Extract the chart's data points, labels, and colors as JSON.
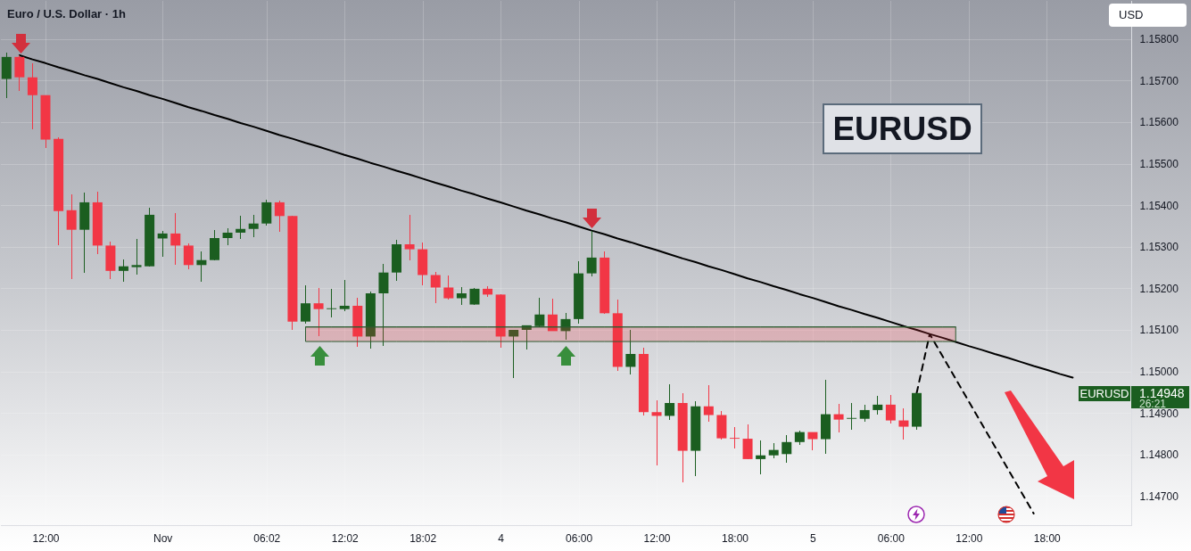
{
  "chart_data": {
    "type": "candlestick",
    "title": "Euro / U.S. Dollar · 1h",
    "ylabel": "USD",
    "annotations": [
      "EURUSD",
      "EURUSD",
      "1.14948",
      "26:21"
    ],
    "categories": [
      null,
      null,
      null,
      "12:00",
      null,
      null,
      null,
      null,
      null,
      null,
      null,
      null,
      "Nov",
      null,
      null,
      null,
      null,
      null,
      null,
      null,
      "06:02",
      null,
      null,
      null,
      null,
      null,
      "12:02",
      null,
      null,
      null,
      null,
      null,
      "18:02",
      null,
      null,
      null,
      null,
      null,
      "4",
      null,
      null,
      null,
      null,
      null,
      "06:00",
      null,
      null,
      null,
      null,
      null,
      "12:00",
      null,
      null,
      null,
      null,
      null,
      "18:00",
      null,
      null,
      null,
      null,
      null,
      "5",
      null,
      null,
      null,
      null,
      null,
      "06:00",
      null,
      null,
      null,
      null,
      null,
      "12:00",
      null,
      null,
      null,
      null,
      null,
      "18:00",
      null,
      null,
      null,
      null,
      null,
      null
    ],
    "ohlc": [
      [
        1.15704,
        1.15767,
        1.15657,
        1.15757
      ],
      [
        1.15757,
        1.15762,
        1.15676,
        1.15708
      ],
      [
        1.15708,
        1.15742,
        1.15582,
        1.15665
      ],
      [
        1.15665,
        1.15665,
        1.15537,
        1.15558
      ],
      [
        1.1556,
        1.15564,
        1.15304,
        1.15386
      ],
      [
        1.15388,
        1.15427,
        1.15223,
        1.15341
      ],
      [
        1.15341,
        1.15431,
        1.15238,
        1.15407
      ],
      [
        1.15407,
        1.15433,
        1.15283,
        1.15303
      ],
      [
        1.15303,
        1.15313,
        1.15223,
        1.15242
      ],
      [
        1.15242,
        1.1527,
        1.15216,
        1.15253
      ],
      [
        1.15251,
        1.15318,
        1.15232,
        1.15256
      ],
      [
        1.15253,
        1.15394,
        1.15253,
        1.15377
      ],
      [
        1.1532,
        1.15339,
        1.15275,
        1.15332
      ],
      [
        1.15332,
        1.15382,
        1.15256,
        1.15303
      ],
      [
        1.15303,
        1.15309,
        1.15245,
        1.15256
      ],
      [
        1.15256,
        1.15289,
        1.15216,
        1.15268
      ],
      [
        1.15268,
        1.15341,
        1.15268,
        1.15321
      ],
      [
        1.15321,
        1.15345,
        1.15303,
        1.15334
      ],
      [
        1.15334,
        1.15374,
        1.15319,
        1.15343
      ],
      [
        1.15343,
        1.15377,
        1.15324,
        1.15356
      ],
      [
        1.15356,
        1.15414,
        1.15352,
        1.15407
      ],
      [
        1.15407,
        1.15412,
        1.15335,
        1.15374
      ],
      [
        1.15374,
        1.15374,
        1.15099,
        1.1512
      ],
      [
        1.1512,
        1.15208,
        1.15116,
        1.15164
      ],
      [
        1.15164,
        1.15201,
        1.15084,
        1.1515
      ],
      [
        1.1515,
        1.15199,
        1.15129,
        1.15152
      ],
      [
        1.1515,
        1.15221,
        1.15144,
        1.15158
      ],
      [
        1.15158,
        1.15178,
        1.1506,
        1.15084
      ],
      [
        1.15084,
        1.15193,
        1.15054,
        1.15188
      ],
      [
        1.15188,
        1.15259,
        1.15062,
        1.15238
      ],
      [
        1.15238,
        1.15317,
        1.15217,
        1.15306
      ],
      [
        1.15306,
        1.15377,
        1.15268,
        1.15294
      ],
      [
        1.15294,
        1.15311,
        1.15208,
        1.15232
      ],
      [
        1.15232,
        1.1524,
        1.15165,
        1.15202
      ],
      [
        1.15202,
        1.15231,
        1.15172,
        1.15176
      ],
      [
        1.15176,
        1.15203,
        1.15161,
        1.15188
      ],
      [
        1.15161,
        1.15201,
        1.15161,
        1.15199
      ],
      [
        1.15199,
        1.15206,
        1.1518,
        1.15185
      ],
      [
        1.15185,
        1.15185,
        1.15058,
        1.15084
      ],
      [
        1.15084,
        1.151,
        1.14985,
        1.151
      ],
      [
        1.151,
        1.15111,
        1.15052,
        1.15111
      ],
      [
        1.15109,
        1.15178,
        1.15107,
        1.15137
      ],
      [
        1.15137,
        1.15176,
        1.15097,
        1.15097
      ],
      [
        1.15097,
        1.15141,
        1.15077,
        1.15126
      ],
      [
        1.15126,
        1.15266,
        1.15116,
        1.15236
      ],
      [
        1.15236,
        1.15338,
        1.15228,
        1.15274
      ],
      [
        1.15274,
        1.15289,
        1.15138,
        1.1514
      ],
      [
        1.1514,
        1.15173,
        1.15002,
        1.15011
      ],
      [
        1.15011,
        1.151,
        1.14992,
        1.15042
      ],
      [
        1.15042,
        1.15058,
        1.14895,
        1.14902
      ],
      [
        1.14902,
        1.14931,
        1.14773,
        1.14893
      ],
      [
        1.14893,
        1.1497,
        1.14884,
        1.14924
      ],
      [
        1.14924,
        1.14948,
        1.14734,
        1.14809
      ],
      [
        1.14809,
        1.14929,
        1.14749,
        1.14916
      ],
      [
        1.14916,
        1.14967,
        1.14878,
        1.14895
      ],
      [
        1.14895,
        1.14905,
        1.14837,
        1.14839
      ],
      [
        1.1484,
        1.14867,
        1.14814,
        1.14838
      ],
      [
        1.14838,
        1.14873,
        1.14788,
        1.14789
      ],
      [
        1.14789,
        1.14834,
        1.14753,
        1.14798
      ],
      [
        1.14798,
        1.14828,
        1.14792,
        1.14811
      ],
      [
        1.14801,
        1.14847,
        1.14781,
        1.1483
      ],
      [
        1.1483,
        1.14858,
        1.14824,
        1.14854
      ],
      [
        1.14854,
        1.14854,
        1.14811,
        1.14837
      ],
      [
        1.14837,
        1.1498,
        1.14801,
        1.14897
      ],
      [
        1.14897,
        1.14922,
        1.14854,
        1.14884
      ],
      [
        1.14886,
        1.14924,
        1.1486,
        1.14888
      ],
      [
        1.14886,
        1.1492,
        1.14878,
        1.14907
      ],
      [
        1.14907,
        1.14942,
        1.14897,
        1.1492
      ],
      [
        1.1492,
        1.14944,
        1.14874,
        1.14882
      ],
      [
        1.14882,
        1.14912,
        1.14837,
        1.14867
      ],
      [
        1.14867,
        1.14948,
        1.14859,
        1.14948
      ],
      null,
      null,
      null,
      null,
      null,
      null,
      null,
      null,
      null,
      null,
      null,
      null,
      null,
      null,
      null,
      null
    ],
    "colors": [
      "#1b5e20",
      "#f23645",
      "#f23645",
      "#f23645",
      "#f23645",
      "#f23645",
      "#1b5e20",
      "#f23645",
      "#f23645",
      "#1b5e20",
      "#1b5e20",
      "#1b5e20",
      "#1b5e20",
      "#f23645",
      "#f23645",
      "#1b5e20",
      "#1b5e20",
      "#1b5e20",
      "#1b5e20",
      "#1b5e20",
      "#1b5e20",
      "#f23645",
      "#f23645",
      "#1b5e20",
      "#f23645",
      "#1b5e20",
      "#1b5e20",
      "#f23645",
      "#1b5e20",
      "#1b5e20",
      "#1b5e20",
      "#f23645",
      "#f23645",
      "#f23645",
      "#f23645",
      "#1b5e20",
      "#1b5e20",
      "#f23645",
      "#f23645",
      "#1b5e20",
      "#1b5e20",
      "#1b5e20",
      "#f23645",
      "#1b5e20",
      "#1b5e20",
      "#1b5e20",
      "#f23645",
      "#f23645",
      "#1b5e20",
      "#f23645",
      "#f23645",
      "#1b5e20",
      "#f23645",
      "#1b5e20",
      "#f23645",
      "#f23645",
      "#f23645",
      "#f23645",
      "#1b5e20",
      "#1b5e20",
      "#1b5e20",
      "#1b5e20",
      "#f23645",
      "#1b5e20",
      "#f23645",
      "#1b5e20",
      "#1b5e20",
      "#1b5e20",
      "#f23645",
      "#f23645",
      "#1b5e20",
      null,
      null,
      null,
      null,
      null,
      null,
      null,
      null,
      null,
      null,
      null,
      null,
      null,
      null,
      null,
      null
    ],
    "series": [
      {
        "type": "line",
        "color": "#2c5b30",
        "values": [
          null,
          null,
          null,
          null,
          null,
          null,
          null,
          null,
          null,
          null,
          null,
          null,
          null,
          null,
          null,
          null,
          null,
          null,
          null,
          null,
          null,
          null,
          null,
          1.15107,
          1.15107,
          1.15107,
          1.15107,
          1.15107,
          1.15107,
          1.15107,
          1.15107,
          1.15107,
          1.15107,
          1.15107,
          1.15107,
          1.15107,
          1.15107,
          1.15107,
          1.15107,
          1.15107,
          1.15107,
          1.15107,
          1.15107,
          1.15107,
          1.15107,
          1.15107,
          1.15107,
          1.15107,
          1.15107,
          1.15107,
          1.15107,
          1.15107,
          1.15107,
          1.15107,
          1.15107,
          1.15107,
          1.15107,
          1.15107,
          1.15107,
          1.15107,
          1.15107,
          1.15107,
          1.15107,
          1.15107,
          1.15107,
          1.15107,
          1.15107,
          1.15107,
          1.15107,
          1.15107,
          1.15107,
          1.15107,
          1.15107,
          1.15107,
          null,
          null,
          null,
          null,
          null,
          null,
          null,
          null,
          null,
          null,
          null,
          null,
          null
        ],
        "upper": [
          null,
          null,
          null,
          null,
          null,
          null,
          null,
          null,
          null,
          null,
          null,
          null,
          null,
          null,
          null,
          null,
          null,
          null,
          null,
          null,
          null,
          null,
          null,
          1.15107,
          1.15107,
          1.15107,
          1.15107,
          1.15107,
          1.15107,
          1.15107,
          1.15107,
          1.15107,
          1.15107,
          1.15107,
          1.15107,
          1.15107,
          1.15107,
          1.15107,
          1.15107,
          1.15107,
          1.15107,
          1.15107,
          1.15107,
          1.15107,
          1.15107,
          1.15107,
          1.15107,
          1.15107,
          1.15107,
          1.15107,
          1.15107,
          1.15107,
          1.15107,
          1.15107,
          1.15107,
          1.15107,
          1.15107,
          1.15107,
          1.15107,
          1.15107,
          1.15107,
          1.15107,
          1.15107,
          1.15107,
          1.15107,
          1.15107,
          1.15107,
          1.15107,
          1.15107,
          1.15107,
          1.15107,
          1.15107,
          1.15107,
          1.15107,
          null,
          null,
          null,
          null,
          null,
          null,
          null,
          null,
          null,
          null,
          null,
          null,
          null
        ],
        "lower": [
          null,
          null,
          null,
          null,
          null,
          null,
          null,
          null,
          null,
          null,
          null,
          null,
          null,
          null,
          null,
          null,
          null,
          null,
          null,
          null,
          null,
          null,
          null,
          1.15072,
          1.15072,
          1.15072,
          1.15072,
          1.15072,
          1.15072,
          1.15072,
          1.15072,
          1.15072,
          1.15072,
          1.15072,
          1.15072,
          1.15072,
          1.15072,
          1.15072,
          1.15072,
          1.15072,
          1.15072,
          1.15072,
          1.15072,
          1.15072,
          1.15072,
          1.15072,
          1.15072,
          1.15072,
          1.15072,
          1.15072,
          1.15072,
          1.15072,
          1.15072,
          1.15072,
          1.15072,
          1.15072,
          1.15072,
          1.15072,
          1.15072,
          1.15072,
          1.15072,
          1.15072,
          1.15072,
          1.15072,
          1.15072,
          1.15072,
          1.15072,
          1.15072,
          1.15072,
          1.15072,
          1.15072,
          1.15072,
          1.15072,
          1.15072,
          null,
          null,
          null,
          null,
          null,
          null,
          null,
          null,
          null,
          null,
          null,
          null,
          null
        ]
      },
      {
        "type": "line",
        "color": "#000000",
        "values": [
          null,
          1.15761,
          1.15751,
          1.15742,
          1.15732,
          1.15723,
          1.15713,
          1.15704,
          1.15694,
          1.15684,
          1.15675,
          1.15665,
          1.15656,
          1.15646,
          1.15636,
          1.15627,
          1.15617,
          1.15608,
          1.15598,
          1.15589,
          1.15579,
          1.15569,
          1.1556,
          1.1555,
          1.15541,
          1.15531,
          1.15521,
          1.15512,
          1.15502,
          1.15493,
          1.15483,
          1.15474,
          1.15464,
          1.15454,
          1.15445,
          1.15435,
          1.15426,
          1.15416,
          1.15407,
          1.15397,
          1.15387,
          1.15378,
          1.15368,
          1.15359,
          1.15349,
          1.15339,
          1.1533,
          1.1532,
          1.15311,
          1.15301,
          1.15292,
          1.15282,
          1.15272,
          1.15263,
          1.15253,
          1.15244,
          1.15234,
          1.15224,
          1.15215,
          1.15205,
          1.15196,
          1.15186,
          1.15177,
          1.15167,
          1.15157,
          1.15148,
          1.15138,
          1.15129,
          1.15119,
          1.15109,
          1.151,
          1.1509,
          1.15081,
          1.15071,
          1.15061,
          1.15052,
          1.15042,
          1.15033,
          1.15023,
          1.15013,
          1.15004,
          1.14994,
          1.14985,
          null,
          null,
          null,
          null
        ]
      },
      {
        "type": "line",
        "color": "#000000",
        "line_style": "dashed",
        "values": [
          null,
          null,
          null,
          null,
          null,
          null,
          null,
          null,
          null,
          null,
          null,
          null,
          null,
          null,
          null,
          null,
          null,
          null,
          null,
          null,
          null,
          null,
          null,
          null,
          null,
          null,
          null,
          null,
          null,
          null,
          null,
          null,
          null,
          null,
          null,
          null,
          null,
          null,
          null,
          null,
          null,
          null,
          null,
          null,
          null,
          null,
          null,
          null,
          null,
          null,
          null,
          null,
          null,
          null,
          null,
          null,
          null,
          null,
          null,
          null,
          null,
          null,
          null,
          null,
          null,
          null,
          null,
          null,
          null,
          null,
          1.14948,
          1.1509,
          1.15036,
          1.14982,
          1.14928,
          1.14874,
          1.1482,
          1.14766,
          1.14712,
          1.14658,
          null,
          null,
          null,
          null,
          null,
          null,
          null
        ]
      }
    ],
    "ylim": [
      1.1463,
      1.15894
    ],
    "yticks": [
      {
        "value": 1.158,
        "label": "1.15800"
      },
      {
        "value": 1.157,
        "label": "1.15700"
      },
      {
        "value": 1.156,
        "label": "1.15600"
      },
      {
        "value": 1.155,
        "label": "1.15500"
      },
      {
        "value": 1.154,
        "label": "1.15400"
      },
      {
        "value": 1.153,
        "label": "1.15300"
      },
      {
        "value": 1.152,
        "label": "1.15200"
      },
      {
        "value": 1.151,
        "label": "1.15100"
      },
      {
        "value": 1.15,
        "label": "1.15000"
      },
      {
        "value": 1.149,
        "label": "1.14900"
      },
      {
        "value": 1.148,
        "label": "1.14800"
      },
      {
        "value": 1.147,
        "label": "1.14700"
      }
    ],
    "grid": true
  }
}
